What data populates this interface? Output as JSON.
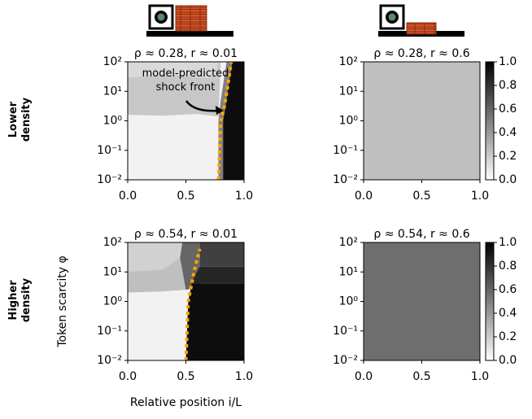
{
  "chart_data": [
    {
      "type": "contour",
      "title": "ρ ≈ 0.28, r ≈ 0.01",
      "row_label": "Lower density",
      "annotation": "model-predicted shock front",
      "xlim": [
        0,
        1
      ],
      "ylim": [
        0.01,
        100
      ],
      "yscale": "log",
      "colormap": "Greys",
      "xticks": [
        {
          "value": 0,
          "label": "0.0"
        },
        0.5,
        {
          "value": 1,
          "label": "1.0"
        }
      ],
      "yticks": [
        {
          "value": 0.01,
          "label": "10⁻²"
        },
        {
          "value": 0.1,
          "label": "10⁻¹"
        },
        {
          "value": 1,
          "label": "10⁰"
        },
        {
          "value": 10,
          "label": "10¹"
        },
        {
          "value": 100,
          "label": "10²"
        }
      ],
      "regions": [
        {
          "value": 0.05,
          "points": [
            [
              0,
              0.01
            ],
            [
              1,
              0.01
            ],
            [
              1,
              100
            ],
            [
              0,
              100
            ]
          ]
        },
        {
          "value": 0.22,
          "points": [
            [
              0,
              1.6
            ],
            [
              0.3,
              1.5
            ],
            [
              0.6,
              1.7
            ],
            [
              0.78,
              1.4
            ],
            [
              0.8,
              100
            ],
            [
              0,
              100
            ]
          ]
        },
        {
          "value": 0.15,
          "points": [
            [
              0,
              30
            ],
            [
              0.4,
              35
            ],
            [
              0.7,
              28
            ],
            [
              0.76,
              40
            ],
            [
              0.78,
              100
            ],
            [
              0,
              100
            ]
          ]
        },
        {
          "value": 0.5,
          "points": [
            [
              0.78,
              0.01
            ],
            [
              0.82,
              0.01
            ],
            [
              0.82,
              1
            ],
            [
              0.84,
              3
            ],
            [
              0.87,
              20
            ],
            [
              0.9,
              100
            ],
            [
              0.85,
              100
            ],
            [
              0.8,
              5
            ],
            [
              0.78,
              1
            ]
          ]
        },
        {
          "value": 0.95,
          "points": [
            [
              0.82,
              0.01
            ],
            [
              1,
              0.01
            ],
            [
              1,
              100
            ],
            [
              0.9,
              100
            ],
            [
              0.87,
              20
            ],
            [
              0.84,
              3
            ],
            [
              0.82,
              1
            ]
          ]
        }
      ],
      "shock_front": {
        "color": "#ffa500",
        "x": [
          0.78,
          0.79,
          0.8,
          0.83,
          0.86,
          0.89
        ],
        "y": [
          0.01,
          0.1,
          1,
          3,
          15,
          100
        ]
      }
    },
    {
      "type": "contour",
      "title": "ρ ≈ 0.28, r ≈ 0.6",
      "xlim": [
        0,
        1
      ],
      "ylim": [
        0.01,
        100
      ],
      "yscale": "log",
      "colormap": "Greys",
      "xticks": [
        {
          "value": 0,
          "label": "0.0"
        },
        0.5,
        {
          "value": 1,
          "label": "1.0"
        }
      ],
      "yticks": [
        {
          "value": 0.01,
          "label": "10⁻²"
        },
        {
          "value": 0.1,
          "label": "10⁻¹"
        },
        {
          "value": 1,
          "label": "10⁰"
        },
        {
          "value": 10,
          "label": "10¹"
        },
        {
          "value": 100,
          "label": "10²"
        }
      ],
      "regions": [
        {
          "value": 0.25,
          "points": [
            [
              0,
              0.01
            ],
            [
              1,
              0.01
            ],
            [
              1,
              100
            ],
            [
              0,
              100
            ]
          ]
        }
      ],
      "clim": [
        0,
        1
      ],
      "cticks": [
        {
          "value": 0,
          "label": "0.0"
        },
        0.2,
        0.4,
        0.6,
        0.8,
        {
          "value": 1,
          "label": "1.0"
        }
      ]
    },
    {
      "type": "contour",
      "title": "ρ ≈ 0.54, r ≈ 0.01",
      "row_label": "Higher density",
      "xlabel": "Relative position i/L",
      "ylabel": "Token scarcity φ",
      "xlim": [
        0,
        1
      ],
      "ylim": [
        0.01,
        100
      ],
      "yscale": "log",
      "colormap": "Greys",
      "xticks": [
        {
          "value": 0,
          "label": "0.0"
        },
        0.5,
        {
          "value": 1,
          "label": "1.0"
        }
      ],
      "yticks": [
        {
          "value": 0.01,
          "label": "10⁻²"
        },
        {
          "value": 0.1,
          "label": "10⁻¹"
        },
        {
          "value": 1,
          "label": "10⁰"
        },
        {
          "value": 10,
          "label": "10¹"
        },
        {
          "value": 100,
          "label": "10²"
        }
      ],
      "regions": [
        {
          "value": 0.05,
          "points": [
            [
              0,
              0.01
            ],
            [
              1,
              0.01
            ],
            [
              1,
              100
            ],
            [
              0,
              100
            ]
          ]
        },
        {
          "value": 0.25,
          "points": [
            [
              0,
              2
            ],
            [
              0.3,
              2.2
            ],
            [
              0.5,
              2.5
            ],
            [
              0.5,
              100
            ],
            [
              0,
              100
            ]
          ]
        },
        {
          "value": 0.18,
          "points": [
            [
              0,
              10
            ],
            [
              0.3,
              12
            ],
            [
              0.45,
              30
            ],
            [
              0.47,
              100
            ],
            [
              0,
              100
            ]
          ]
        },
        {
          "value": 0.6,
          "points": [
            [
              0.5,
              2.5
            ],
            [
              0.62,
              3
            ],
            [
              0.62,
              100
            ],
            [
              0.47,
              100
            ],
            [
              0.45,
              30
            ]
          ]
        },
        {
          "value": 0.75,
          "points": [
            [
              0.62,
              15
            ],
            [
              1,
              15
            ],
            [
              1,
              100
            ],
            [
              0.62,
              100
            ]
          ]
        },
        {
          "value": 0.85,
          "points": [
            [
              0.55,
              4
            ],
            [
              1,
              4
            ],
            [
              1,
              15
            ],
            [
              0.62,
              15
            ],
            [
              0.58,
              8
            ]
          ]
        },
        {
          "value": 0.95,
          "points": [
            [
              0.5,
              0.01
            ],
            [
              1,
              0.01
            ],
            [
              1,
              4
            ],
            [
              0.55,
              4
            ],
            [
              0.52,
              1
            ]
          ]
        }
      ],
      "shock_front": {
        "color": "#ffa500",
        "x": [
          0.5,
          0.51,
          0.52,
          0.55,
          0.58,
          0.62
        ],
        "y": [
          0.01,
          0.1,
          1,
          4,
          15,
          60
        ]
      }
    },
    {
      "type": "contour",
      "title": "ρ ≈ 0.54, r ≈ 0.6",
      "xlim": [
        0,
        1
      ],
      "ylim": [
        0.01,
        100
      ],
      "yscale": "log",
      "colormap": "Greys",
      "xticks": [
        {
          "value": 0,
          "label": "0.0"
        },
        0.5,
        {
          "value": 1,
          "label": "1.0"
        }
      ],
      "yticks": [
        {
          "value": 0.01,
          "label": "10⁻²"
        },
        {
          "value": 0.1,
          "label": "10⁻¹"
        },
        {
          "value": 1,
          "label": "10⁰"
        },
        {
          "value": 10,
          "label": "10¹"
        },
        {
          "value": 100,
          "label": "10²"
        }
      ],
      "regions": [
        {
          "value": 0.57,
          "points": [
            [
              0,
              0.01
            ],
            [
              1,
              0.01
            ],
            [
              1,
              100
            ],
            [
              0,
              100
            ]
          ]
        }
      ],
      "clim": [
        0,
        1
      ],
      "cticks": [
        {
          "value": 0,
          "label": "0.0"
        },
        0.2,
        0.4,
        0.6,
        0.8,
        {
          "value": 1,
          "label": "1.0"
        }
      ]
    }
  ]
}
